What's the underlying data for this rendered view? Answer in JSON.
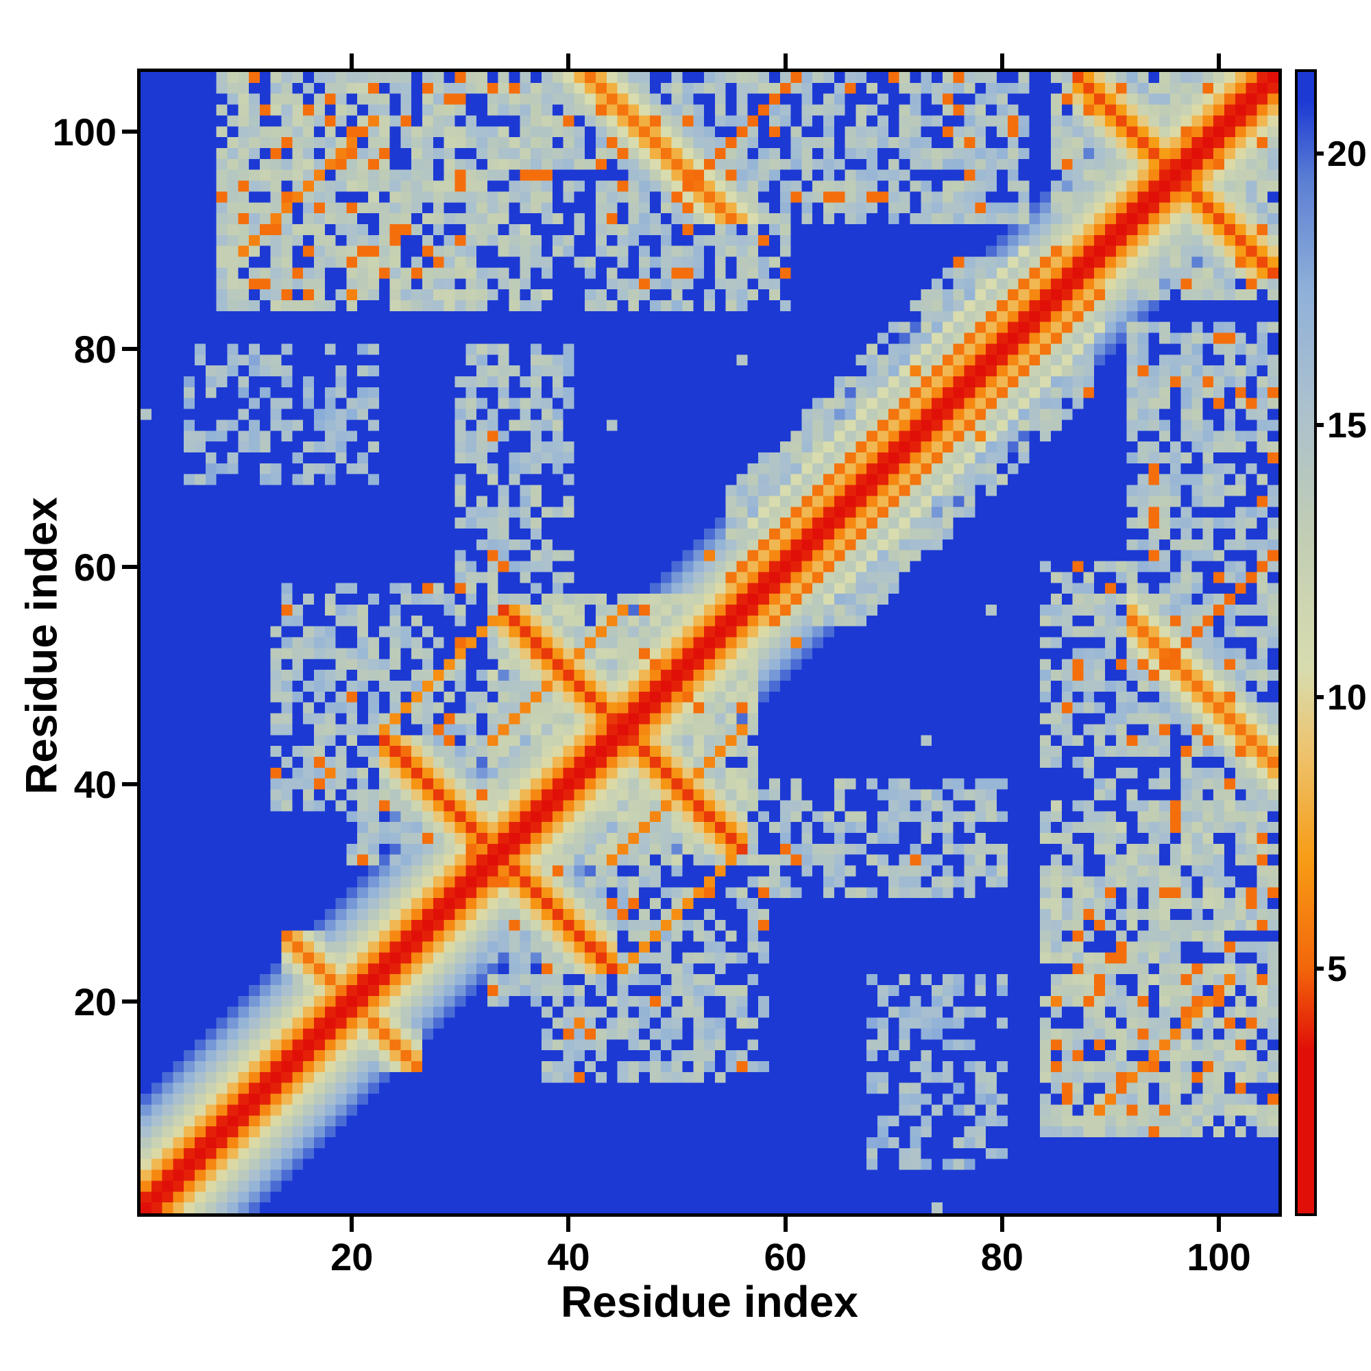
{
  "figure": {
    "background": "#ffffff",
    "frame_color": "#000000"
  },
  "chart_data": {
    "type": "heatmap",
    "title": "",
    "xlabel": "Residue index",
    "ylabel": "Residue index",
    "x_range": [
      0.5,
      105.5
    ],
    "y_range": [
      0.5,
      105.5
    ],
    "x_ticks": [
      20,
      40,
      60,
      80,
      100
    ],
    "y_ticks": [
      20,
      40,
      60,
      80,
      100
    ],
    "n": 105,
    "grid": false,
    "legend": "colorbar-right",
    "colorbar": {
      "ticks": [
        5,
        10,
        15,
        20
      ],
      "domain": [
        0.5,
        21.5
      ]
    },
    "colormap": {
      "stops": [
        [
          0.0,
          "#e01008"
        ],
        [
          3.5,
          "#e01008"
        ],
        [
          5.0,
          "#f3660a"
        ],
        [
          7.0,
          "#f79c15"
        ],
        [
          9.0,
          "#edc36e"
        ],
        [
          10.5,
          "#d8dcae"
        ],
        [
          13.0,
          "#c1cdb4"
        ],
        [
          15.5,
          "#a9c0cf"
        ],
        [
          17.5,
          "#8fb0d8"
        ],
        [
          19.5,
          "#5d80d4"
        ],
        [
          21.0,
          "#1c39d4"
        ],
        [
          22.0,
          "#1c39d4"
        ]
      ]
    },
    "synthesis": {
      "seed": 1337,
      "base": 22,
      "diagonal": {
        "scale": 3.8,
        "power": 0.72
      },
      "hairpins": [
        {
          "center": 33.5,
          "half": 11,
          "d0": 4.2,
          "slope": 2.5
        },
        {
          "center": 45,
          "half": 11,
          "d0": 4.2,
          "slope": 2.5
        },
        {
          "center": 96,
          "half": 9,
          "d0": 4.5,
          "slope": 2.5
        },
        {
          "center": 20,
          "half": 6,
          "d0": 5.5,
          "slope": 2.8
        }
      ],
      "antidiagonals": [
        {
          "sum": 147,
          "lo": 92,
          "hi": 105,
          "d0": 5.5,
          "slope": 2.5,
          "width": 4
        }
      ],
      "parallels": [
        {
          "i0": 55,
          "i1": 85,
          "offset": 4,
          "d": 5.5
        },
        {
          "i0": 57,
          "i1": 82,
          "offset": 7,
          "d": 10.5
        },
        {
          "i0": 33,
          "i1": 45,
          "offset": 11,
          "d": 6.2
        },
        {
          "i0": 23,
          "i1": 33,
          "offset": 22,
          "d": 6.5
        },
        {
          "i0": 50,
          "i1": 61,
          "offset": 44,
          "d": 5.2
        },
        {
          "i0": 10,
          "i1": 22,
          "offset": 79,
          "d": 6.0
        }
      ],
      "blocks": [
        {
          "x0": 8,
          "x1": 38,
          "y0": 84,
          "y1": 105,
          "d": 14.0,
          "hole": 0.22,
          "dot": 0.045
        },
        {
          "x0": 33,
          "x1": 57,
          "y0": 33,
          "y1": 57,
          "d": 13.5,
          "hole": 0.15,
          "dot": 0.03
        },
        {
          "x0": 55,
          "x1": 88,
          "y0": 55,
          "y1": 88,
          "d": 14.5,
          "hole": 0.18,
          "dot": 0.02,
          "max_sep": 12
        },
        {
          "x0": 85,
          "x1": 105,
          "y0": 85,
          "y1": 105,
          "d": 14.5,
          "hole": 0.2,
          "dot": 0.03
        },
        {
          "x0": 58,
          "x1": 82,
          "y0": 92,
          "y1": 105,
          "d": 15.0,
          "hole": 0.3,
          "dot": 0.05
        },
        {
          "x0": 86,
          "x1": 105,
          "y0": 10,
          "y1": 30,
          "d": 14.5,
          "hole": 0.3,
          "dot": 0.07
        },
        {
          "x0": 88,
          "x1": 105,
          "y0": 38,
          "y1": 56,
          "d": 15.0,
          "hole": 0.3,
          "dot": 0.03
        },
        {
          "x0": 13,
          "x1": 31,
          "y0": 38,
          "y1": 58,
          "d": 15.0,
          "hole": 0.38,
          "dot": 0.04
        },
        {
          "x0": 30,
          "x1": 40,
          "y0": 58,
          "y1": 80,
          "d": 15.0,
          "hole": 0.38,
          "dot": 0.02
        },
        {
          "x0": 5,
          "x1": 22,
          "y0": 68,
          "y1": 80,
          "d": 16.0,
          "hole": 0.55,
          "dot": 0.01
        },
        {
          "x0": 42,
          "x1": 60,
          "y0": 84,
          "y1": 105,
          "d": 15.0,
          "hole": 0.35,
          "dot": 0.03
        },
        {
          "x0": 20,
          "x1": 33,
          "y0": 33,
          "y1": 50,
          "d": 15.0,
          "hole": 0.3,
          "dot": 0.03
        }
      ],
      "noise": {
        "dot_p": 0.0012,
        "pale_p": 0.003
      }
    }
  }
}
